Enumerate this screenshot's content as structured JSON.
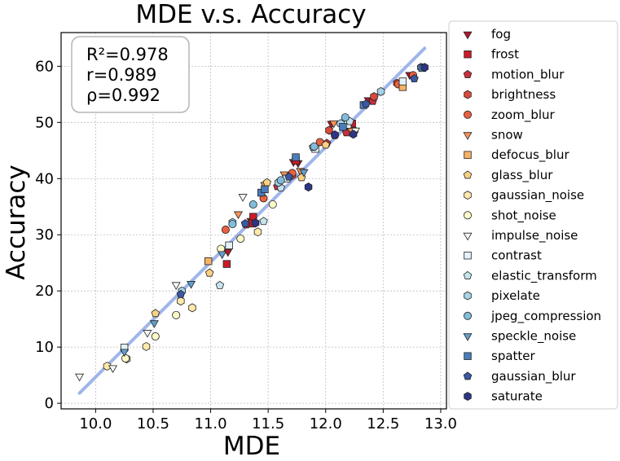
{
  "chart_data": {
    "type": "scatter",
    "title": "MDE  v.s.  Accuracy",
    "xlabel": "MDE",
    "ylabel": "Accuracy",
    "xlim": [
      9.7,
      13.05
    ],
    "ylim": [
      -1,
      66
    ],
    "xticks": [
      10.0,
      10.5,
      11.0,
      11.5,
      12.0,
      12.5,
      13.0
    ],
    "xtick_labels": [
      "10.0",
      "10.5",
      "11.0",
      "11.5",
      "12.0",
      "12.5",
      "13.0"
    ],
    "yticks": [
      0,
      10,
      20,
      30,
      40,
      50,
      60
    ],
    "ytick_labels": [
      "0",
      "10",
      "20",
      "30",
      "40",
      "50",
      "60"
    ],
    "grid": true,
    "legend_position": "outside-right",
    "stats": [
      "R²=0.978",
      "r=0.989",
      "ρ=0.992"
    ],
    "fit_line": {
      "x": [
        9.86,
        12.86
      ],
      "y": [
        1.8,
        63.2
      ],
      "color": "#9fb5ea"
    },
    "series": [
      {
        "name": "fog",
        "marker": "triangle-down",
        "color": "#b2182b",
        "points": [
          [
            11.72,
            43.0
          ],
          [
            11.76,
            42.8
          ],
          [
            12.05,
            49.8
          ],
          [
            12.37,
            54.0
          ],
          [
            12.73,
            58.5
          ],
          [
            11.15,
            27.0
          ],
          [
            11.35,
            32.5
          ],
          [
            12.2,
            49.5
          ]
        ]
      },
      {
        "name": "frost",
        "marker": "square",
        "color": "#cb1b2b",
        "points": [
          [
            11.37,
            33.2
          ],
          [
            11.14,
            24.8
          ],
          [
            11.36,
            32.0
          ],
          [
            11.74,
            43.2
          ],
          [
            12.23,
            49.8
          ]
        ]
      },
      {
        "name": "motion_blur",
        "marker": "pentagon",
        "color": "#c9303a",
        "points": [
          [
            11.31,
            31.8
          ],
          [
            12.01,
            46.3
          ],
          [
            12.41,
            53.8
          ],
          [
            12.18,
            48.2
          ],
          [
            11.58,
            38.6
          ]
        ]
      },
      {
        "name": "brightness",
        "marker": "hexagon",
        "color": "#d94a3c",
        "points": [
          [
            12.03,
            48.6
          ],
          [
            12.42,
            54.6
          ],
          [
            12.62,
            57.0
          ],
          [
            12.83,
            59.8
          ],
          [
            11.71,
            40.6
          ]
        ]
      },
      {
        "name": "zoom_blur",
        "marker": "circle",
        "color": "#e9613f",
        "points": [
          [
            11.13,
            30.9
          ],
          [
            11.46,
            36.5
          ],
          [
            11.95,
            46.5
          ],
          [
            12.25,
            48.5
          ],
          [
            12.63,
            56.8
          ],
          [
            12.76,
            58.4
          ],
          [
            11.71,
            41.0
          ]
        ]
      },
      {
        "name": "snow",
        "marker": "triangle-down",
        "color": "#f4945a",
        "points": [
          [
            11.24,
            33.7
          ],
          [
            11.47,
            38.9
          ],
          [
            11.64,
            40.8
          ],
          [
            12.07,
            49.9
          ],
          [
            12.22,
            48.7
          ],
          [
            11.78,
            41.4
          ]
        ]
      },
      {
        "name": "defocus_blur",
        "marker": "square",
        "color": "#f6b268",
        "points": [
          [
            10.98,
            25.3
          ],
          [
            12.67,
            56.3
          ]
        ]
      },
      {
        "name": "glass_blur",
        "marker": "pentagon",
        "color": "#fad183",
        "points": [
          [
            10.99,
            23.2
          ],
          [
            10.52,
            16.0
          ],
          [
            11.49,
            39.3
          ],
          [
            11.79,
            40.2
          ],
          [
            12.0,
            46.0
          ]
        ]
      },
      {
        "name": "gaussian_noise",
        "marker": "hexagon",
        "color": "#fde9ab",
        "points": [
          [
            10.27,
            7.9
          ],
          [
            10.44,
            10.1
          ],
          [
            10.74,
            18.2
          ],
          [
            10.84,
            17.0
          ],
          [
            11.41,
            30.5
          ],
          [
            10.1,
            6.6
          ]
        ]
      },
      {
        "name": "shot_noise",
        "marker": "circle",
        "color": "#fdfbc7",
        "points": [
          [
            10.26,
            8.0
          ],
          [
            10.52,
            11.9
          ],
          [
            10.7,
            15.7
          ],
          [
            11.26,
            29.3
          ],
          [
            11.54,
            35.4
          ],
          [
            11.09,
            27.5
          ]
        ]
      },
      {
        "name": "impulse_noise",
        "marker": "triangle-down",
        "color": "#f4f8f0",
        "points": [
          [
            9.86,
            4.8
          ],
          [
            10.15,
            6.3
          ],
          [
            10.45,
            12.6
          ],
          [
            10.7,
            21.1
          ],
          [
            11.28,
            36.8
          ],
          [
            12.26,
            48.6
          ]
        ]
      },
      {
        "name": "contrast",
        "marker": "square",
        "color": "#e2f2f7",
        "points": [
          [
            10.25,
            9.9
          ],
          [
            11.16,
            28.1
          ],
          [
            11.66,
            40.0
          ],
          [
            11.91,
            45.3
          ],
          [
            12.19,
            49.6
          ],
          [
            12.67,
            57.3
          ]
        ]
      },
      {
        "name": "elastic_transform",
        "marker": "pentagon",
        "color": "#c5e3ef",
        "points": [
          [
            11.08,
            21.0
          ],
          [
            11.46,
            32.4
          ],
          [
            11.89,
            45.6
          ],
          [
            12.21,
            50.2
          ],
          [
            11.61,
            38.4
          ]
        ]
      },
      {
        "name": "pixelate",
        "marker": "hexagon",
        "color": "#a6d3e7",
        "points": [
          [
            10.75,
            20.0
          ],
          [
            11.19,
            32.2
          ],
          [
            11.59,
            39.3
          ],
          [
            12.13,
            49.8
          ],
          [
            12.48,
            55.5
          ]
        ]
      },
      {
        "name": "jpeg_compression",
        "marker": "circle",
        "color": "#82bcdc",
        "points": [
          [
            11.19,
            31.9
          ],
          [
            11.37,
            35.4
          ],
          [
            11.61,
            39.7
          ],
          [
            11.9,
            45.7
          ],
          [
            12.17,
            50.9
          ],
          [
            12.83,
            59.8
          ]
        ]
      },
      {
        "name": "speckle_noise",
        "marker": "triangle-down",
        "color": "#629fcb",
        "points": [
          [
            10.25,
            9.2
          ],
          [
            10.51,
            14.3
          ],
          [
            10.83,
            21.3
          ],
          [
            11.1,
            26.6
          ],
          [
            11.81,
            41.2
          ]
        ]
      },
      {
        "name": "spatter",
        "marker": "square",
        "color": "#4a7dbb",
        "points": [
          [
            11.44,
            37.5
          ],
          [
            11.47,
            38.1
          ],
          [
            11.74,
            43.8
          ],
          [
            12.15,
            49.2
          ],
          [
            12.33,
            53.1
          ],
          [
            12.84,
            59.7
          ]
        ]
      },
      {
        "name": "gaussian_blur",
        "marker": "pentagon",
        "color": "#3a58a3",
        "points": [
          [
            10.74,
            19.4
          ],
          [
            11.3,
            32.0
          ],
          [
            11.68,
            40.3
          ],
          [
            12.08,
            47.7
          ],
          [
            12.35,
            53.3
          ],
          [
            12.77,
            57.8
          ]
        ]
      },
      {
        "name": "saturate",
        "marker": "hexagon",
        "color": "#2d3585",
        "points": [
          [
            11.39,
            32.1
          ],
          [
            11.85,
            38.5
          ],
          [
            12.08,
            47.8
          ],
          [
            12.24,
            47.9
          ],
          [
            12.86,
            59.8
          ]
        ]
      }
    ]
  }
}
